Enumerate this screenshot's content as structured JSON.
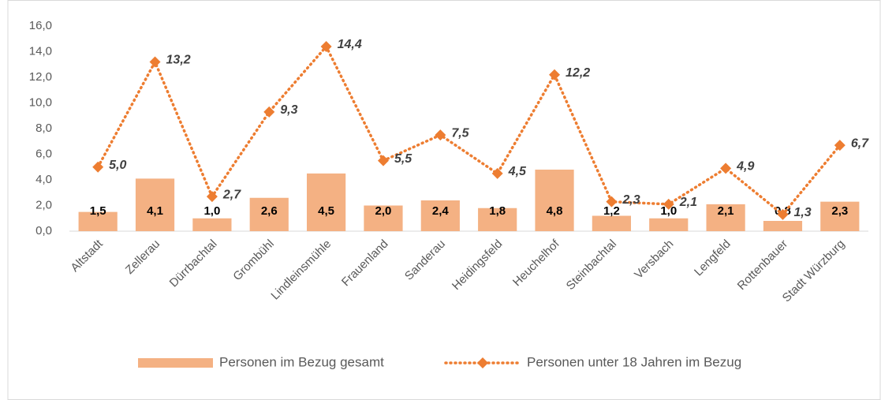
{
  "chart_data": {
    "type": "bar",
    "categories": [
      "Altstadt",
      "Zellerau",
      "Dürrbachtal",
      "Grombühl",
      "Lindleinsmühle",
      "Frauenland",
      "Sanderau",
      "Heidingsfeld",
      "Heuchelhof",
      "Steinbachtal",
      "Versbach",
      "Lengfeld",
      "Rottenbauer",
      "Stadt Würzburg"
    ],
    "series": [
      {
        "name": "Personen im Bezug gesamt",
        "type": "bar",
        "color": "#f4b183",
        "values": [
          1.5,
          4.1,
          1.0,
          2.6,
          4.5,
          2.0,
          2.4,
          1.8,
          4.8,
          1.2,
          1.0,
          2.1,
          0.8,
          2.3
        ],
        "value_labels": [
          "1,5",
          "4,1",
          "1,0",
          "2,6",
          "4,5",
          "2,0",
          "2,4",
          "1,8",
          "4,8",
          "1,2",
          "1,0",
          "2,1",
          "0,8",
          "2,3"
        ]
      },
      {
        "name": "Personen unter 18 Jahren im Bezug",
        "type": "line",
        "color": "#ed7d31",
        "values": [
          5.0,
          13.2,
          2.7,
          9.3,
          14.4,
          5.5,
          7.5,
          4.5,
          12.2,
          2.3,
          2.1,
          4.9,
          1.3,
          6.7
        ],
        "value_labels": [
          "5,0",
          "13,2",
          "2,7",
          "9,3",
          "14,4",
          "5,5",
          "7,5",
          "4,5",
          "12,2",
          "2,3",
          "2,1",
          "4,9",
          "1,3",
          "6,7"
        ]
      }
    ],
    "ylim": [
      0,
      16
    ],
    "yticks": [
      {
        "value": 0,
        "label": "0,0"
      },
      {
        "value": 2,
        "label": "2,0"
      },
      {
        "value": 4,
        "label": "4,0"
      },
      {
        "value": 6,
        "label": "6,0"
      },
      {
        "value": 8,
        "label": "8,0"
      },
      {
        "value": 10,
        "label": "10,0"
      },
      {
        "value": 12,
        "label": "12,0"
      },
      {
        "value": 14,
        "label": "14,0"
      },
      {
        "value": 16,
        "label": "16,0"
      }
    ],
    "grid": false,
    "legend": "bottom"
  }
}
